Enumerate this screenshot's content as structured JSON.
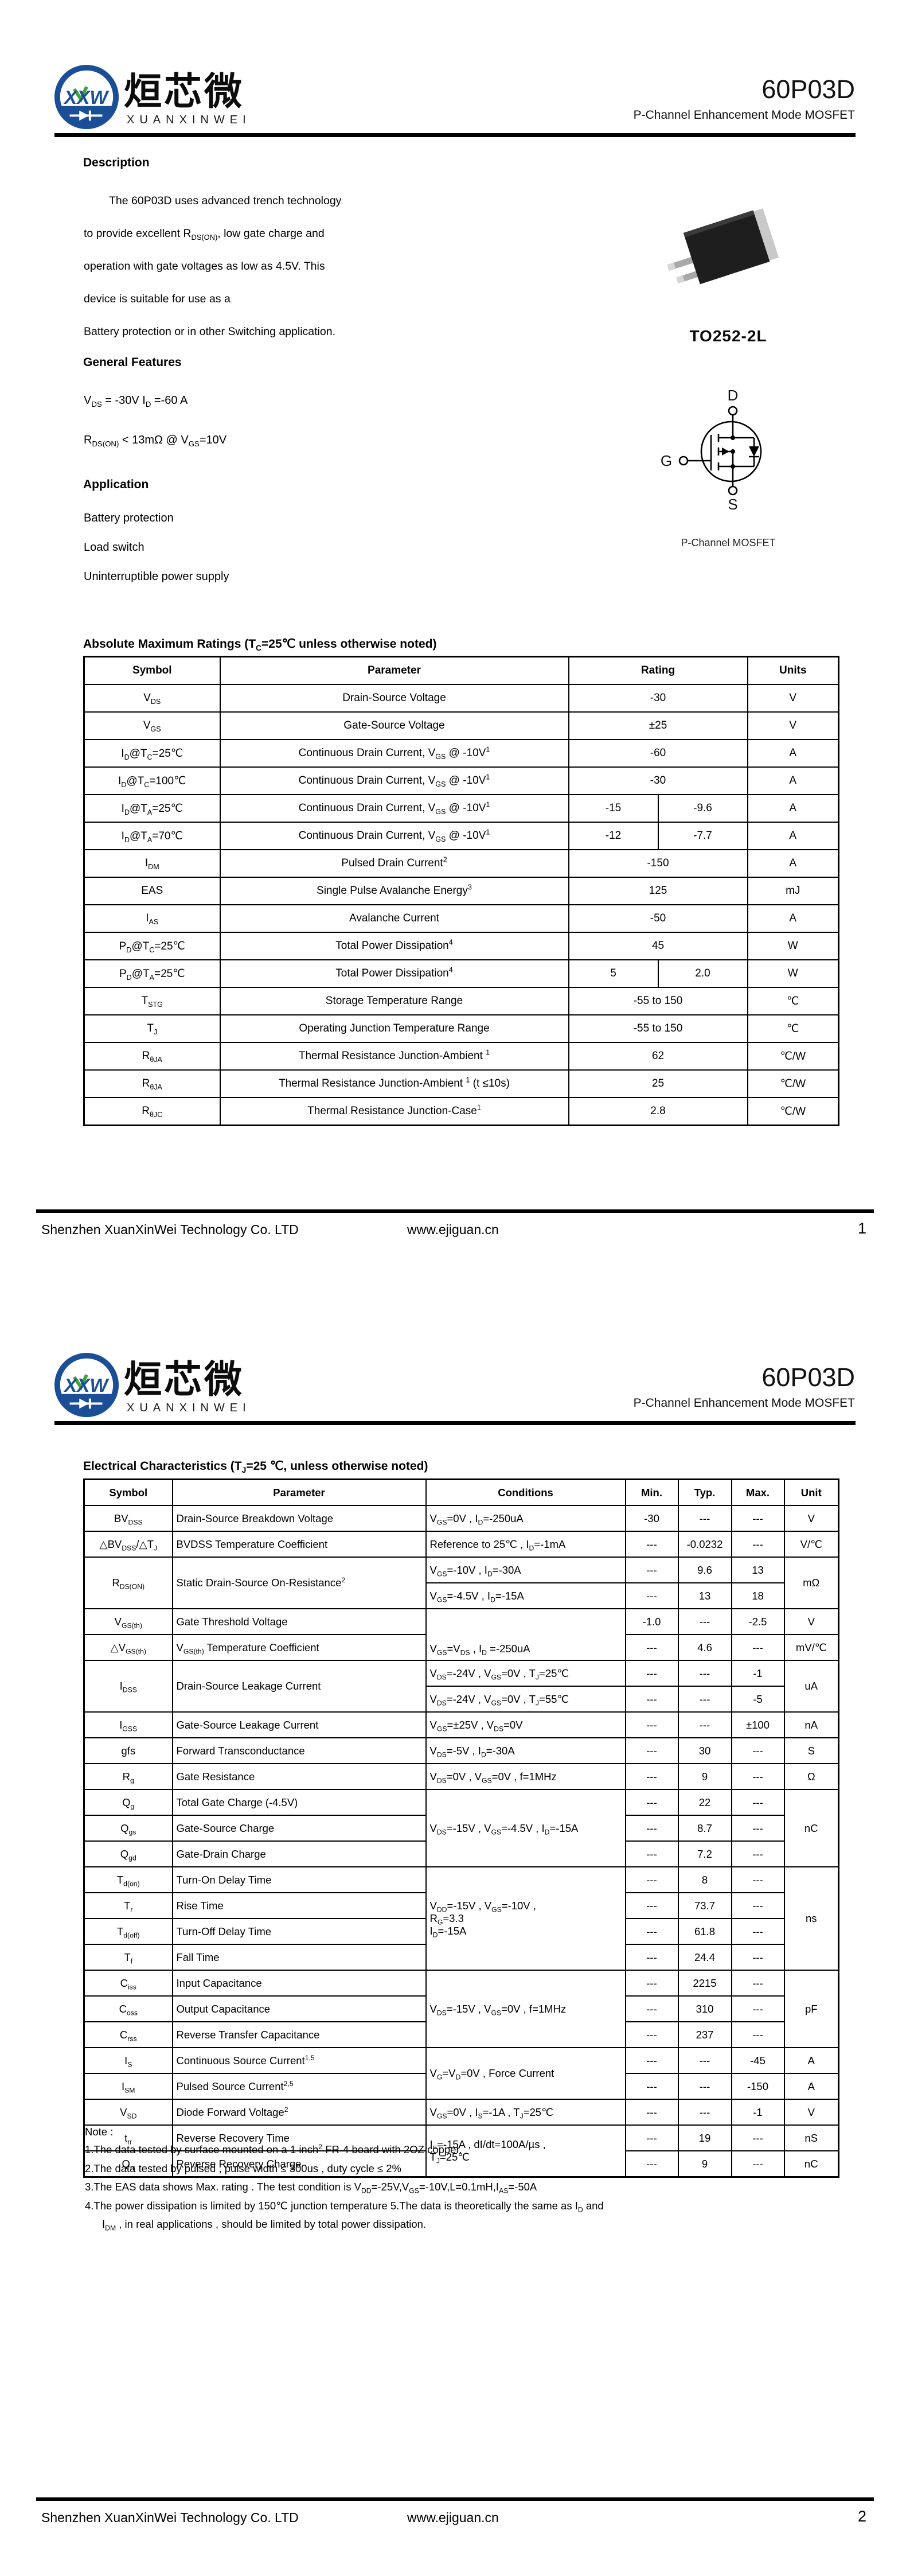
{
  "header": {
    "part_number": "60P03D",
    "subtitle": "P-Channel Enhancement Mode MOSFET",
    "logo": {
      "mark": "XXW",
      "chinese": "烜芯微",
      "english": "XUANXINWEI",
      "blue": "#1a4e96",
      "green": "#3fa33c"
    }
  },
  "footer": {
    "company": "Shenzhen XuanXinWei Technology Co. LTD",
    "website": "www.ejiguan.cn",
    "page1": "1",
    "page2": "2"
  },
  "page1": {
    "description": {
      "heading": "Description",
      "lines": [
        "The 60P03D uses advanced trench technology",
        "to provide excellent R~DS(ON)~, low gate charge and",
        "operation with gate voltages as low as 4.5V. This",
        "device is suitable for use as a",
        "Battery protection or in other Switching application."
      ]
    },
    "general_features": {
      "heading": "General Features",
      "lines": [
        "V~DS~ = -30V  I~D~ =-60 A",
        "R~DS(ON)~ < 13mΩ @ V~GS~=10V"
      ]
    },
    "application": {
      "heading": "Application",
      "lines": [
        "Battery protection",
        "Load switch",
        "Uninterruptible power supply"
      ]
    },
    "package": {
      "name": "TO252-2L",
      "caption": "P-Channel MOSFET",
      "pin_d": "D",
      "pin_g": "G",
      "pin_s": "S"
    },
    "abs_max": {
      "heading": "Absolute Maximum Ratings (T~C~=25℃ unless otherwise noted)",
      "columns": [
        "Symbol",
        "Parameter",
        "Rating",
        "Units"
      ],
      "rows": [
        {
          "symbol": "V~DS~",
          "parameter": "Drain-Source Voltage",
          "rating": [
            "-30"
          ],
          "units": "V"
        },
        {
          "symbol": "V~GS~",
          "parameter": "Gate-Source Voltage",
          "rating": [
            "±25"
          ],
          "units": "V"
        },
        {
          "symbol": "I~D~@T~C~=25℃",
          "parameter": "Continuous Drain Current, V~GS~ @ -10V^1^",
          "rating": [
            "-60"
          ],
          "units": "A"
        },
        {
          "symbol": "I~D~@T~C~=100℃",
          "parameter": "Continuous Drain Current, V~GS~ @ -10V^1^",
          "rating": [
            "-30"
          ],
          "units": "A"
        },
        {
          "symbol": "I~D~@T~A~=25℃",
          "parameter": "Continuous Drain Current, V~GS~ @ -10V^1^",
          "rating": [
            "-15",
            "-9.6"
          ],
          "units": "A"
        },
        {
          "symbol": "I~D~@T~A~=70℃",
          "parameter": "Continuous Drain Current, V~GS~ @ -10V^1^",
          "rating": [
            "-12",
            "-7.7"
          ],
          "units": "A"
        },
        {
          "symbol": "I~DM~",
          "parameter": "Pulsed Drain Current^2^",
          "rating": [
            "-150"
          ],
          "units": "A"
        },
        {
          "symbol": "EAS",
          "parameter": "Single Pulse Avalanche Energy^3^",
          "rating": [
            "125"
          ],
          "units": "mJ"
        },
        {
          "symbol": "I~AS~",
          "parameter": "Avalanche Current",
          "rating": [
            "-50"
          ],
          "units": "A"
        },
        {
          "symbol": "P~D~@T~C~=25℃",
          "parameter": "Total Power Dissipation^4^",
          "rating": [
            "45"
          ],
          "units": "W"
        },
        {
          "symbol": "P~D~@T~A~=25℃",
          "parameter": "Total Power Dissipation^4^",
          "rating": [
            "5",
            "2.0"
          ],
          "units": "W"
        },
        {
          "symbol": "T~STG~",
          "parameter": "Storage Temperature Range",
          "rating": [
            "-55 to 150"
          ],
          "units": "℃"
        },
        {
          "symbol": "T~J~",
          "parameter": "Operating Junction Temperature Range",
          "rating": [
            "-55 to 150"
          ],
          "units": "℃"
        },
        {
          "symbol": "R~θJA~",
          "parameter": "Thermal Resistance Junction-Ambient ^1^",
          "rating": [
            "62"
          ],
          "units": "℃/W"
        },
        {
          "symbol": "R~θJA~",
          "parameter": "Thermal Resistance Junction-Ambient ^1^ (t ≤10s)",
          "rating": [
            "25"
          ],
          "units": "℃/W"
        },
        {
          "symbol": "R~θJC~",
          "parameter": "Thermal Resistance Junction-Case^1^",
          "rating": [
            "2.8"
          ],
          "units": "℃/W"
        }
      ]
    }
  },
  "page2": {
    "elec": {
      "heading": "Electrical Characteristics (T~J~=25 ℃, unless otherwise noted)",
      "columns": [
        "Symbol",
        "Parameter",
        "Conditions",
        "Min.",
        "Typ.",
        "Max.",
        "Unit"
      ],
      "rows": [
        {
          "sym": "BV~DSS~",
          "par": "Drain-Source Breakdown Voltage",
          "cond": "V~GS~=0V , I~D~=-250uA",
          "min": "-30",
          "typ": "---",
          "max": "---",
          "unit": "V"
        },
        {
          "sym": "△BV~DSS~/△T~J~",
          "par": "BVDSS Temperature Coefficient",
          "cond": "Reference to 25℃ , I~D~=-1mA",
          "min": "---",
          "typ": "-0.0232",
          "max": "---",
          "unit": "V/℃"
        },
        {
          "sym": "R~DS(ON)~",
          "symspan": 2,
          "par": "Static Drain-Source On-Resistance^2^",
          "parspan": 2,
          "cond": "V~GS~=-10V , I~D~=-30A",
          "min": "---",
          "typ": "9.6",
          "max": "13",
          "unit": "mΩ",
          "unitspan": 2
        },
        {
          "cond": "V~GS~=-4.5V , I~D~=-15A",
          "min": "---",
          "typ": "13",
          "max": "18"
        },
        {
          "sym": "V~GS(th)~",
          "par": "Gate Threshold Voltage",
          "cond": "V~GS~=V~DS~ , I~D~ =-250uA",
          "condspan": 2,
          "condv": "bottom",
          "min": "-1.0",
          "typ": "---",
          "max": "-2.5",
          "unit": "V"
        },
        {
          "sym": "△V~GS(th)~",
          "par": "V~GS(th)~ Temperature Coefficient",
          "min": "---",
          "typ": "4.6",
          "max": "---",
          "unit": "mV/℃"
        },
        {
          "sym": "I~DSS~",
          "symspan": 2,
          "par": "Drain-Source Leakage Current",
          "parspan": 2,
          "cond": "V~DS~=-24V , V~GS~=0V , T~J~=25℃",
          "min": "---",
          "typ": "---",
          "max": "-1",
          "unit": "uA",
          "unitspan": 2
        },
        {
          "cond": "V~DS~=-24V , V~GS~=0V , T~J~=55℃",
          "min": "---",
          "typ": "---",
          "max": "-5"
        },
        {
          "sym": "I~GSS~",
          "par": "Gate-Source Leakage Current",
          "cond": "V~GS~=±25V , V~DS~=0V",
          "min": "---",
          "typ": "---",
          "max": "±100",
          "unit": "nA"
        },
        {
          "sym": "gfs",
          "par": "Forward Transconductance",
          "cond": "V~DS~=-5V , I~D~=-30A",
          "min": "---",
          "typ": "30",
          "max": "---",
          "unit": "S"
        },
        {
          "sym": "R~g~",
          "par": "Gate Resistance",
          "cond": "V~DS~=0V , V~GS~=0V , f=1MHz",
          "min": "---",
          "typ": "9",
          "max": "---",
          "unit": "Ω"
        },
        {
          "sym": "Q~g~",
          "par": "Total Gate Charge (-4.5V)",
          "cond": "V~DS~=-15V , V~GS~=-4.5V , I~D~=-15A",
          "condspan": 3,
          "min": "---",
          "typ": "22",
          "max": "---",
          "unit": "nC",
          "unitspan": 3
        },
        {
          "sym": "Q~gs~",
          "par": "Gate-Source Charge",
          "min": "---",
          "typ": "8.7",
          "max": "---"
        },
        {
          "sym": "Q~gd~",
          "par": "Gate-Drain Charge",
          "min": "---",
          "typ": "7.2",
          "max": "---"
        },
        {
          "sym": "T~d(on)~",
          "par": "Turn-On Delay Time",
          "cond": "V~DD~=-15V  ,  V~GS~=-10V  ,\nR~G~=3.3\nI~D~=-15A",
          "condspan": 4,
          "min": "---",
          "typ": "8",
          "max": "---",
          "unit": "ns",
          "unitspan": 4
        },
        {
          "sym": "T~r~",
          "par": "Rise Time",
          "min": "---",
          "typ": "73.7",
          "max": "---"
        },
        {
          "sym": "T~d(off)~",
          "par": "Turn-Off Delay Time",
          "min": "---",
          "typ": "61.8",
          "max": "---"
        },
        {
          "sym": "T~f~",
          "par": "Fall Time",
          "min": "---",
          "typ": "24.4",
          "max": "---"
        },
        {
          "sym": "C~iss~",
          "par": "Input Capacitance",
          "cond": "V~DS~=-15V , V~GS~=0V , f=1MHz",
          "condspan": 3,
          "min": "---",
          "typ": "2215",
          "max": "---",
          "unit": "pF",
          "unitspan": 3
        },
        {
          "sym": "C~oss~",
          "par": "Output Capacitance",
          "min": "---",
          "typ": "310",
          "max": "---"
        },
        {
          "sym": "C~rss~",
          "par": "Reverse Transfer Capacitance",
          "min": "---",
          "typ": "237",
          "max": "---"
        },
        {
          "sym": "I~S~",
          "par": "Continuous Source Current^1,5^",
          "cond": "V~G~=V~D~=0V , Force Current",
          "condspan": 2,
          "min": "---",
          "typ": "---",
          "max": "-45",
          "unit": "A"
        },
        {
          "sym": "I~SM~",
          "par": "Pulsed Source Current^2,5^",
          "min": "---",
          "typ": "---",
          "max": "-150",
          "unit": "A"
        },
        {
          "sym": "V~SD~",
          "par": "Diode Forward Voltage^2^",
          "cond": "V~GS~=0V , I~S~=-1A , T~J~=25℃",
          "min": "---",
          "typ": "---",
          "max": "-1",
          "unit": "V"
        },
        {
          "sym": "t~rr~",
          "par": "Reverse Recovery Time",
          "cond": "I~F~=-15A , dI/dt=100A/µs ,\nT~J~=25℃",
          "condspan": 2,
          "min": "---",
          "typ": "19",
          "max": "---",
          "unit": "nS"
        },
        {
          "sym": "Q~rr~",
          "par": "Reverse Recovery Charge",
          "min": "---",
          "typ": "9",
          "max": "---",
          "unit": "nC"
        }
      ]
    },
    "notes": {
      "label": "Note :",
      "items": [
        "1.The data tested by surface mounted on a 1 inch^2^ FR-4 board with 2OZ copper.",
        "2.The data tested by pulsed , pulse width ≤ 300us , duty cycle ≤ 2%",
        "3.The EAS data shows Max. rating . The test condition is V~DD~=-25V,V~GS~=-10V,L=0.1mH,I~AS~=-50A",
        "4.The power dissipation is limited by 150℃ junction temperature 5.The data is theoretically the same as I~D~ and",
        "I~DM~ , in real applications , should be limited by total power dissipation."
      ]
    }
  }
}
